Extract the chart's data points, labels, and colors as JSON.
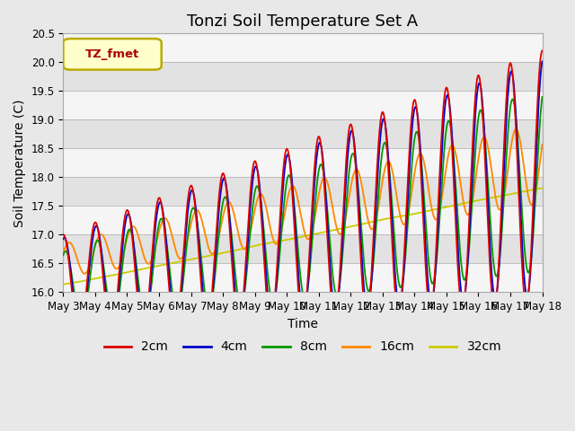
{
  "title": "Tonzi Soil Temperature Set A",
  "xlabel": "Time",
  "ylabel": "Soil Temperature (C)",
  "ylim": [
    16.0,
    20.5
  ],
  "yticks": [
    16.0,
    16.5,
    17.0,
    17.5,
    18.0,
    18.5,
    19.0,
    19.5,
    20.0,
    20.5
  ],
  "xtick_labels": [
    "May 3",
    "May 4",
    "May 5",
    "May 6",
    "May 7",
    "May 8",
    "May 9",
    "May 10",
    "May 11",
    "May 12",
    "May 13",
    "May 14",
    "May 15",
    "May 16",
    "May 17",
    "May 18"
  ],
  "annotation_text": "TZ_fmet",
  "annotation_box_color": "#ffffcc",
  "annotation_border_color": "#bbaa00",
  "annotation_text_color": "#aa0000",
  "legend_entries": [
    "2cm",
    "4cm",
    "8cm",
    "16cm",
    "32cm"
  ],
  "line_colors": [
    "#dd0000",
    "#0000cc",
    "#009900",
    "#ff8800",
    "#cccc00"
  ],
  "background_color": "#e8e8e8",
  "plot_bg_color": "#e8e8e8",
  "band_colors": [
    "#e8e8e8",
    "#f8f8f8"
  ],
  "n_days": 15,
  "pts_per_day": 96,
  "title_fontsize": 13,
  "axis_label_fontsize": 10,
  "tick_fontsize": 8.5,
  "legend_fontsize": 10
}
